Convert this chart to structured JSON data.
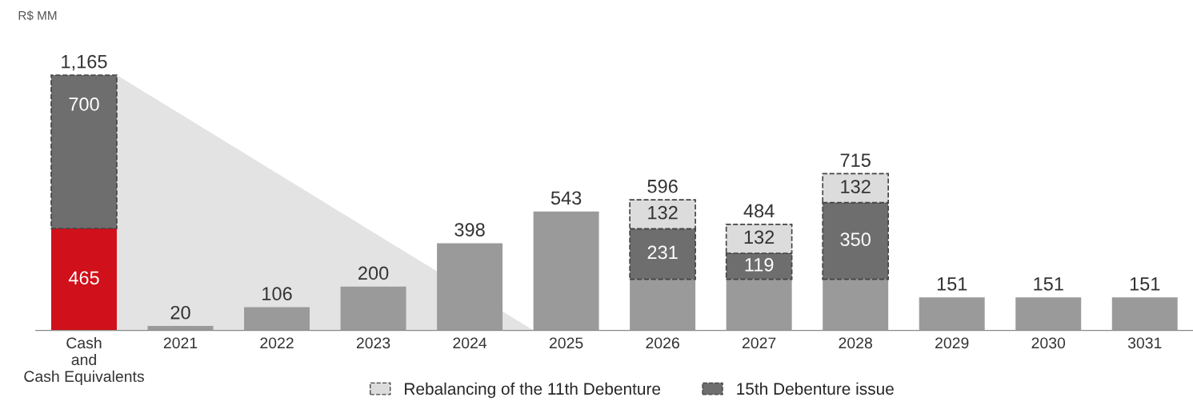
{
  "chart_data": {
    "type": "bar",
    "stacked": true,
    "ylabel": "R$ MM",
    "categories": [
      "Cash\nand\nCash Equivalents",
      "2021",
      "2022",
      "2023",
      "2024",
      "2025",
      "2026",
      "2027",
      "2028",
      "2029",
      "2030",
      "3031"
    ],
    "series": [
      {
        "colors": [
          "#d0101a",
          "#9a9a9a",
          "#9a9a9a",
          "#9a9a9a",
          "#9a9a9a",
          "#9a9a9a",
          "#9a9a9a",
          "#9a9a9a",
          "#9a9a9a",
          "#9a9a9a",
          "#9a9a9a",
          "#9a9a9a"
        ],
        "values": [
          465,
          20,
          106,
          200,
          398,
          543,
          233,
          233,
          233,
          151,
          151,
          151
        ],
        "value_labels": [
          "465",
          null,
          null,
          null,
          null,
          null,
          null,
          null,
          null,
          null,
          null,
          null
        ]
      },
      {
        "name": "15th Debenture issue",
        "color": "#6e6e6e",
        "line_style": "dashed",
        "values": [
          700,
          null,
          null,
          null,
          null,
          null,
          231,
          119,
          350,
          null,
          null,
          null
        ],
        "data_labels": true
      },
      {
        "name": "Rebalancing of the 11th Debenture",
        "color": "#dcdcdc",
        "line_style": "dashed",
        "values": [
          null,
          null,
          null,
          null,
          null,
          null,
          132,
          132,
          132,
          null,
          null,
          null
        ],
        "data_labels": true
      }
    ],
    "totals": [
      "1,165",
      "20",
      "106",
      "200",
      "398",
      "543",
      "596",
      "484",
      "715",
      "151",
      "151",
      "151"
    ],
    "legend": "bottom",
    "grid": false
  }
}
